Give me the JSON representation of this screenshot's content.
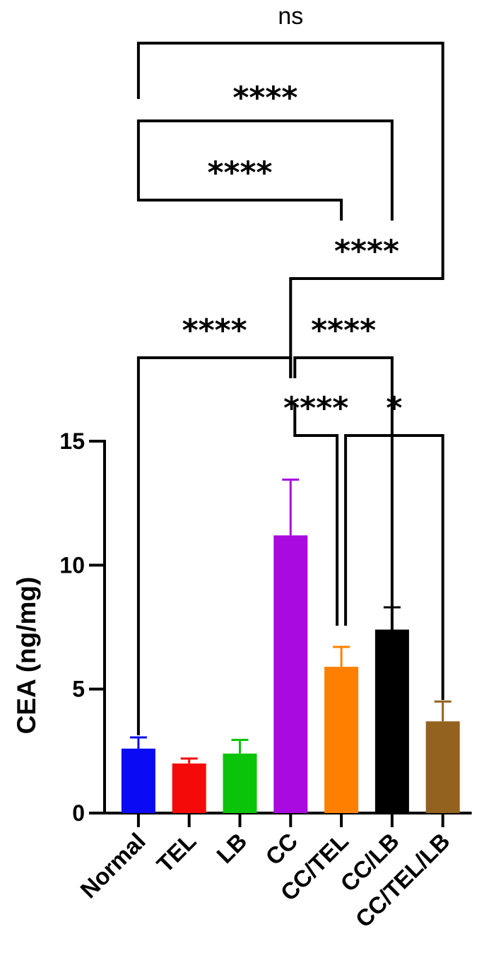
{
  "chart_data": {
    "type": "bar",
    "ylabel": "CEA (ng/mg)",
    "ylim": [
      0,
      15
    ],
    "yticks": [
      0,
      5,
      10,
      15
    ],
    "yticklabels": [
      "0",
      "5",
      "10",
      "15"
    ],
    "categories": [
      "Normal",
      "TEL",
      "LB",
      "CC",
      "CC/TEL",
      "CC/LB",
      "CC/TEL/LB"
    ],
    "values": [
      2.6,
      2.0,
      2.4,
      11.2,
      5.9,
      7.4,
      3.7
    ],
    "errors": [
      0.45,
      0.2,
      0.55,
      2.25,
      0.8,
      0.9,
      0.8
    ],
    "colors": [
      "#0a0af5",
      "#f50a0a",
      "#0ac40a",
      "#a80ae0",
      "#ff8000",
      "#000000",
      "#94621f"
    ],
    "comparisons": [
      {
        "from": "CC",
        "to": "CC/TEL",
        "label": "****"
      },
      {
        "from": "CC/TEL",
        "to": "CC/TEL/LB",
        "label": "*"
      },
      {
        "from": "Normal",
        "to": "CC",
        "label": "****"
      },
      {
        "from": "CC",
        "to": "CC/LB",
        "label": "****"
      },
      {
        "from": "CC",
        "to": "CC/TEL/LB",
        "label": "****"
      },
      {
        "from": "Normal",
        "to": "CC/TEL",
        "label": "****"
      },
      {
        "from": "Normal",
        "to": "CC/LB",
        "label": "****"
      },
      {
        "from": "Normal",
        "to": "CC/TEL/LB",
        "label": "ns"
      }
    ]
  }
}
